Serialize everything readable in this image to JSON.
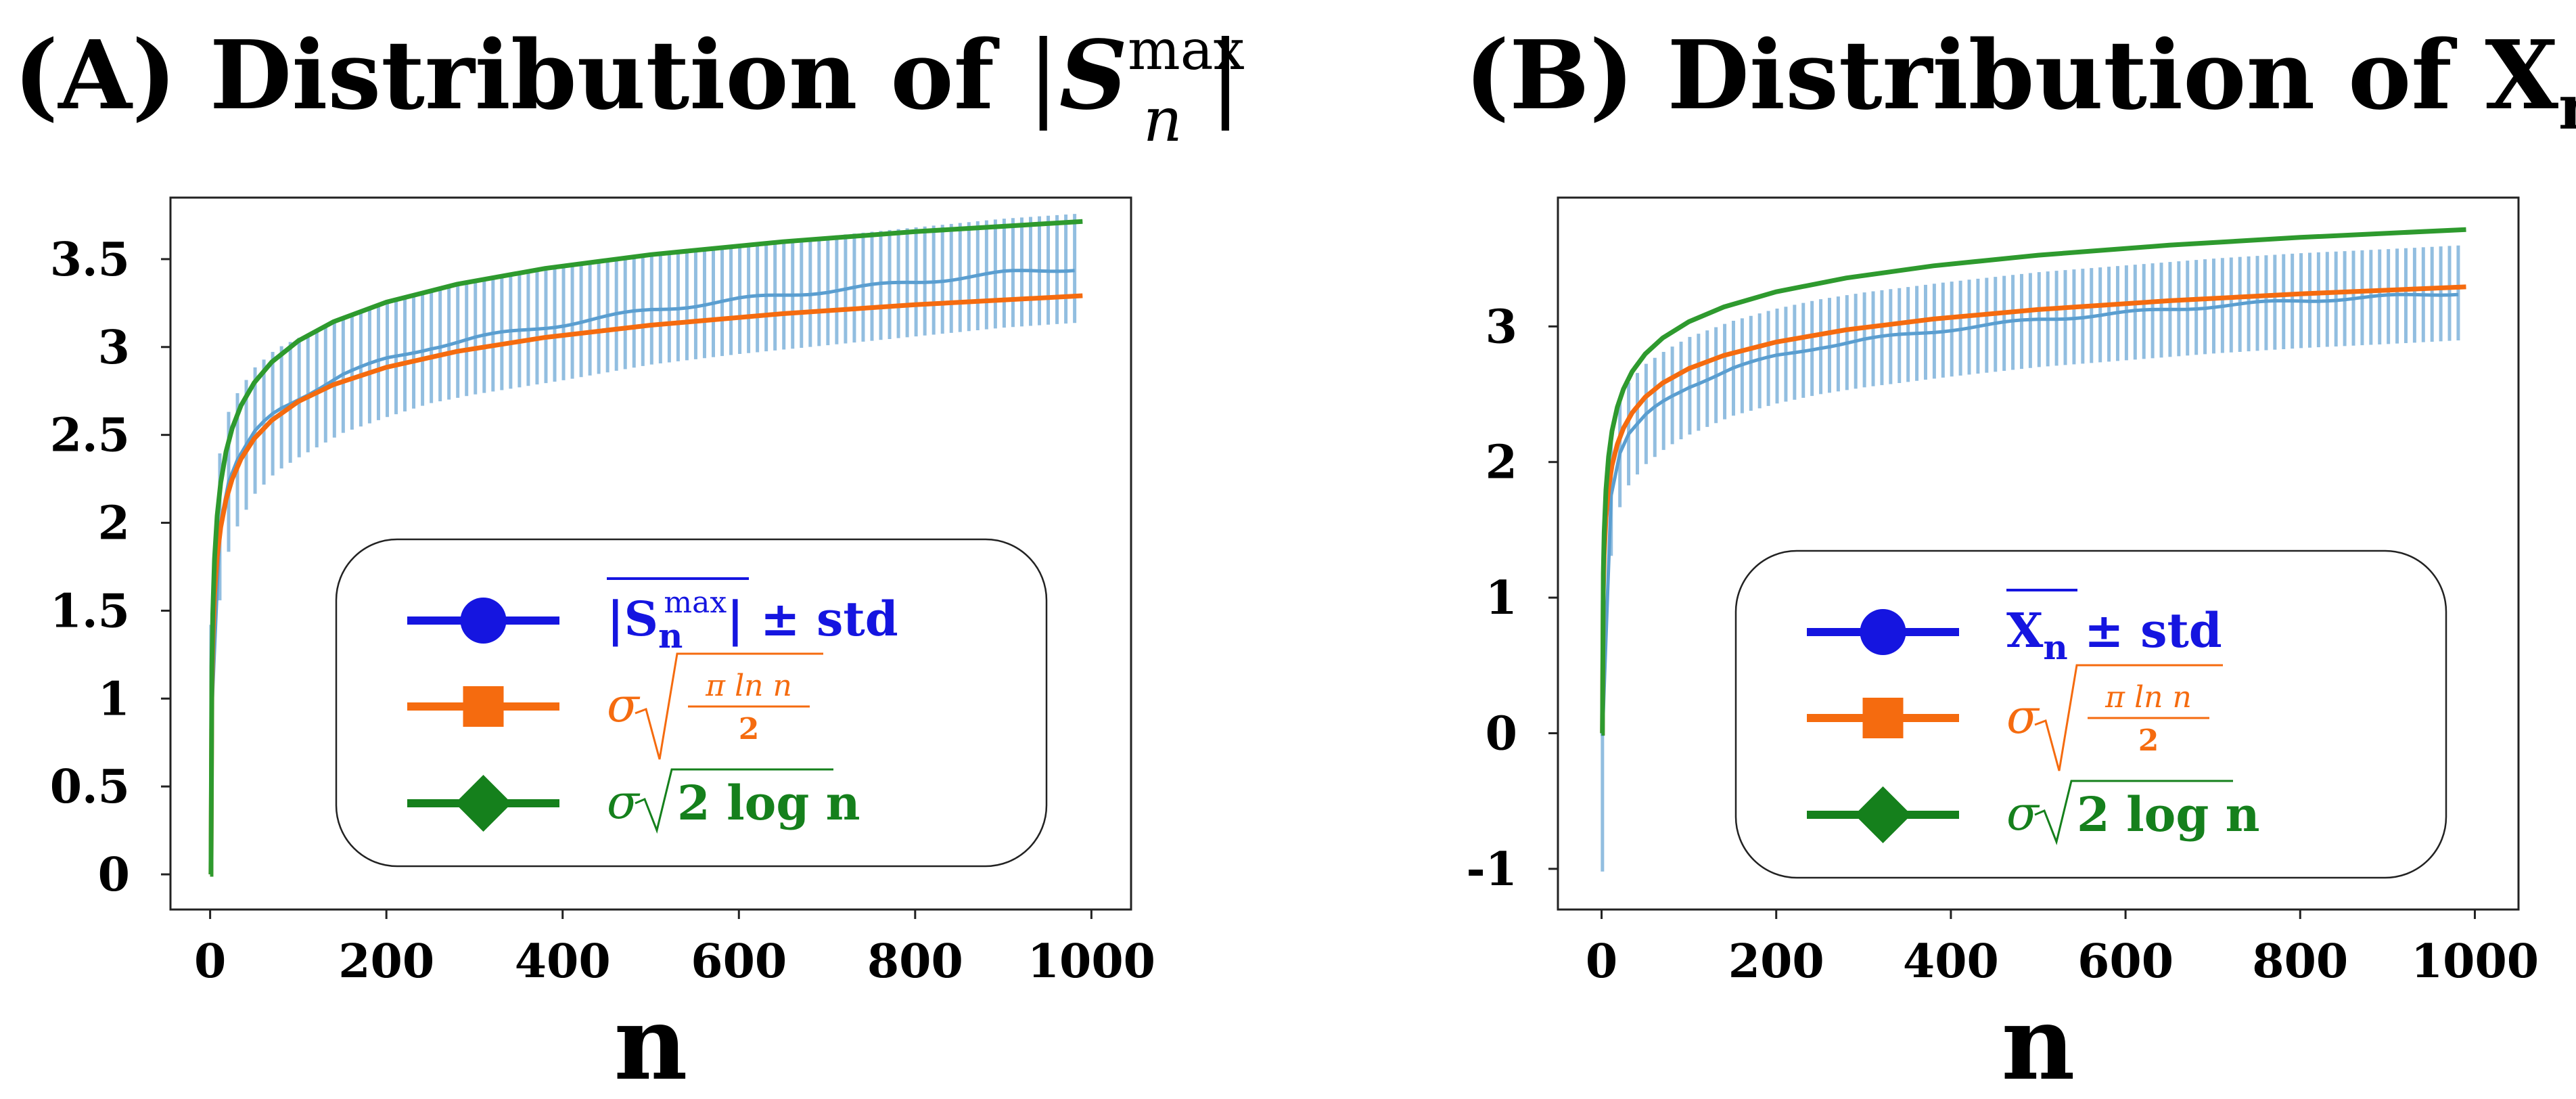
{
  "chart_data": [
    {
      "type": "line",
      "panel": "A",
      "title_prefix": "(A) Distribution of ",
      "title_math": {
        "bar": "|",
        "symbol": "S",
        "sup": "max",
        "sub": "n"
      },
      "xlabel": "n",
      "ylabel": "",
      "xlim": [
        -45,
        1045
      ],
      "ylim": [
        -0.2,
        3.85
      ],
      "xticks": [
        0,
        200,
        400,
        600,
        800,
        1000
      ],
      "xtick_labels": [
        "0",
        "200",
        "400",
        "600",
        "800",
        "1000"
      ],
      "yticks": [
        0,
        0.5,
        1,
        1.5,
        2,
        2.5,
        3,
        3.5
      ],
      "ytick_labels": [
        "0",
        "0.5",
        "1",
        "1.5",
        "2",
        "2.5",
        "3",
        "3.5"
      ],
      "sigma": 1.0,
      "legend_position": "lower-right",
      "legend": [
        {
          "label_main": "|S",
          "label_sub": "n",
          "label_sup": "max",
          "label_tail": "| ± std",
          "color": "#1515e0",
          "marker": "circle"
        },
        {
          "label_main": "σ",
          "label_frac_top": "π ln n",
          "label_frac_bottom": "2",
          "color": "#f56b0f",
          "marker": "square"
        },
        {
          "label_main": "σ",
          "label_root": "2 log n",
          "color": "#15801c",
          "marker": "diamond"
        }
      ],
      "series": [
        {
          "name": "mean ± std",
          "color": "#7fb3db",
          "x": [
            1,
            5,
            10,
            20,
            30,
            50,
            75,
            100,
            150,
            200,
            250,
            300,
            400,
            500,
            600,
            700,
            800,
            900,
            990
          ],
          "y": [
            0.82,
            1.55,
            1.95,
            2.22,
            2.35,
            2.52,
            2.64,
            2.71,
            2.84,
            2.93,
            3.0,
            3.05,
            3.13,
            3.21,
            3.27,
            3.32,
            3.37,
            3.42,
            3.45
          ],
          "std": [
            0.6,
            0.5,
            0.42,
            0.4,
            0.38,
            0.36,
            0.35,
            0.34,
            0.33,
            0.33,
            0.32,
            0.32,
            0.32,
            0.31,
            0.31,
            0.31,
            0.31,
            0.31,
            0.31
          ]
        },
        {
          "name": "σ√(π ln n / 2)",
          "color": "#f56b0f",
          "formula": "pi_ln_half"
        },
        {
          "name": "σ√(2 log n)",
          "color": "#2e9a2e",
          "formula": "two_log"
        }
      ]
    },
    {
      "type": "line",
      "panel": "B",
      "title_prefix": "(B) Distribution of ",
      "title_math": {
        "symbol": "X",
        "sub": "n"
      },
      "xlabel": "n",
      "ylabel": "",
      "xlim": [
        -50,
        1050
      ],
      "ylim": [
        -1.3,
        3.95
      ],
      "xticks": [
        0,
        200,
        400,
        600,
        800,
        1000
      ],
      "xtick_labels": [
        "0",
        "200",
        "400",
        "600",
        "800",
        "1000"
      ],
      "yticks": [
        -1,
        0,
        1,
        2,
        3
      ],
      "ytick_labels": [
        "-1",
        "0",
        "1",
        "2",
        "3"
      ],
      "sigma": 1.0,
      "legend_position": "lower-right",
      "legend": [
        {
          "label_main": "X",
          "label_sub": "n",
          "label_tail": " ± std",
          "color": "#1515e0",
          "marker": "circle"
        },
        {
          "label_main": "σ",
          "label_frac_top": "π ln n",
          "label_frac_bottom": "2",
          "color": "#f56b0f",
          "marker": "square"
        },
        {
          "label_main": "σ",
          "label_root": "2 log n",
          "color": "#15801c",
          "marker": "diamond"
        }
      ],
      "series": [
        {
          "name": "mean ± std",
          "color": "#7fb3db",
          "x": [
            1,
            5,
            10,
            20,
            30,
            50,
            75,
            100,
            150,
            200,
            250,
            300,
            400,
            500,
            600,
            700,
            800,
            900,
            990
          ],
          "y": [
            -0.02,
            1.2,
            1.72,
            2.05,
            2.2,
            2.35,
            2.47,
            2.56,
            2.69,
            2.78,
            2.85,
            2.9,
            2.98,
            3.05,
            3.1,
            3.15,
            3.19,
            3.22,
            3.25
          ],
          "std": [
            1.0,
            0.55,
            0.45,
            0.4,
            0.38,
            0.37,
            0.36,
            0.36,
            0.35,
            0.35,
            0.35,
            0.35,
            0.35,
            0.35,
            0.35,
            0.35,
            0.35,
            0.35,
            0.35
          ]
        },
        {
          "name": "σ√(π ln n / 2)",
          "color": "#f56b0f",
          "formula": "pi_ln_half"
        },
        {
          "name": "σ√(2 log n)",
          "color": "#2e9a2e",
          "formula": "two_log"
        }
      ]
    }
  ]
}
